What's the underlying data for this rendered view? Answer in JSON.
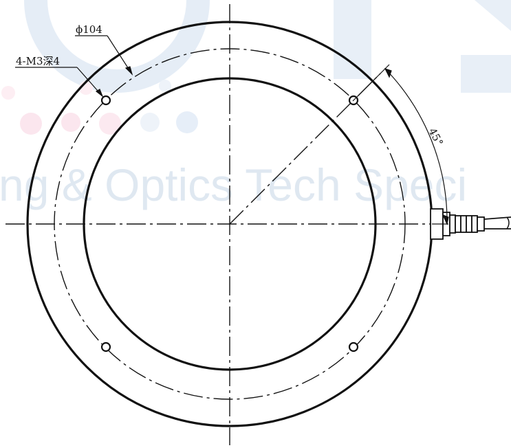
{
  "watermark": {
    "text": "ng & Optics Tech Speci",
    "colors": {
      "blue": "#e3ecf6",
      "pink": "#f9e4ec",
      "text": "#dfe8f1"
    }
  },
  "annotations": {
    "diameter_label": "ϕ104",
    "hole_label": "4-M3深4",
    "angle_label": "45°"
  },
  "colors": {
    "line": "#111111",
    "background": "#ffffff"
  }
}
